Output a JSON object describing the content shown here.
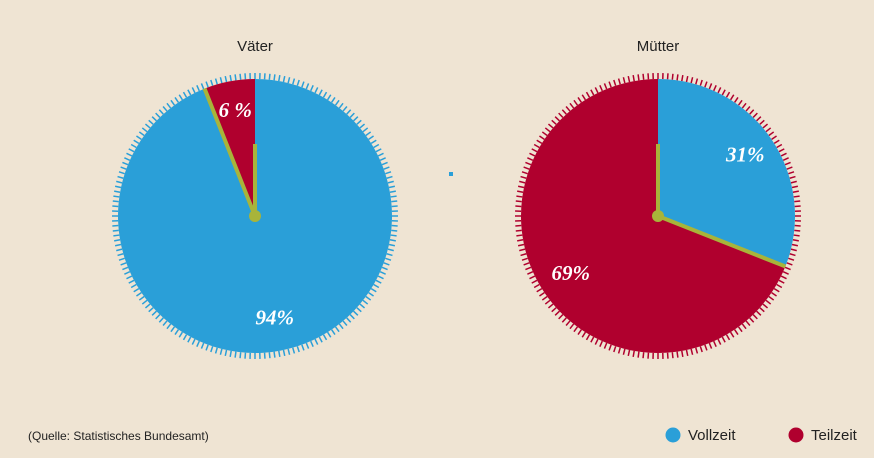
{
  "chart_data": [
    {
      "type": "pie",
      "title": "Väter",
      "categories": [
        "Vollzeit",
        "Teilzeit"
      ],
      "values": [
        94,
        6
      ],
      "value_labels": [
        "94%",
        "6 %"
      ],
      "colors": [
        "#2a9fd8",
        "#b0002e"
      ]
    },
    {
      "type": "pie",
      "title": "Mütter",
      "categories": [
        "Vollzeit",
        "Teilzeit"
      ],
      "values": [
        31,
        69
      ],
      "value_labels": [
        "31%",
        "69%"
      ],
      "colors": [
        "#2a9fd8",
        "#b0002e"
      ]
    }
  ],
  "source": "(Quelle: Statistisches Bundesamt)"
}
